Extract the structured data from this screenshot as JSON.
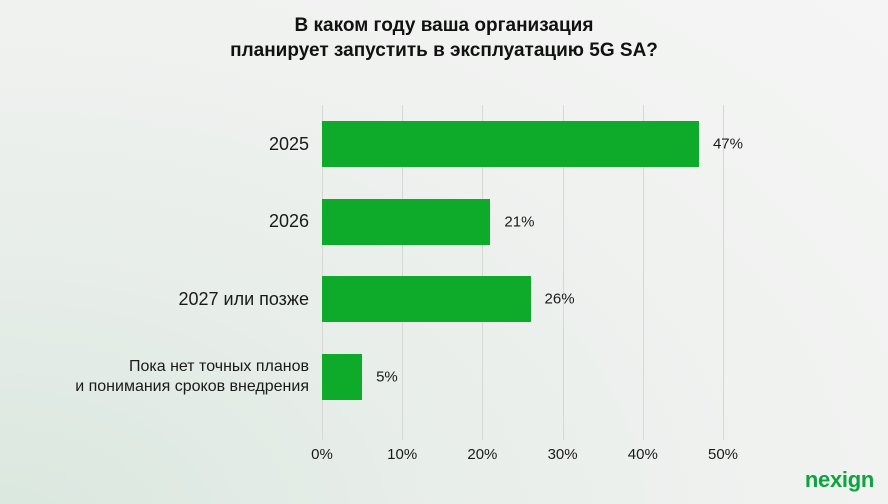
{
  "header": {
    "title_line1": "В каком году ваша организация",
    "title_line2": "планирует запустить в эксплуатацию 5G SA?"
  },
  "chart_data": {
    "type": "bar",
    "orientation": "horizontal",
    "title": "В каком году ваша организация планирует запустить в эксплуатацию 5G SA?",
    "categories": [
      "2025",
      "2026",
      "2027 или позже",
      "Пока нет точных планов\nи понимания сроков внедрения"
    ],
    "values": [
      47,
      21,
      26,
      5
    ],
    "value_labels": [
      "47%",
      "21%",
      "26%",
      "5%"
    ],
    "xlim": [
      0,
      50
    ],
    "x_ticks": [
      "0%",
      "10%",
      "20%",
      "30%",
      "40%",
      "50%"
    ],
    "x_tick_values": [
      0,
      10,
      20,
      30,
      40,
      50
    ],
    "grid": true,
    "legend": false,
    "bar_color": "#0eaa2a"
  },
  "footer": {
    "logo_text": "nexign",
    "logo_color": "#0aa53c"
  }
}
